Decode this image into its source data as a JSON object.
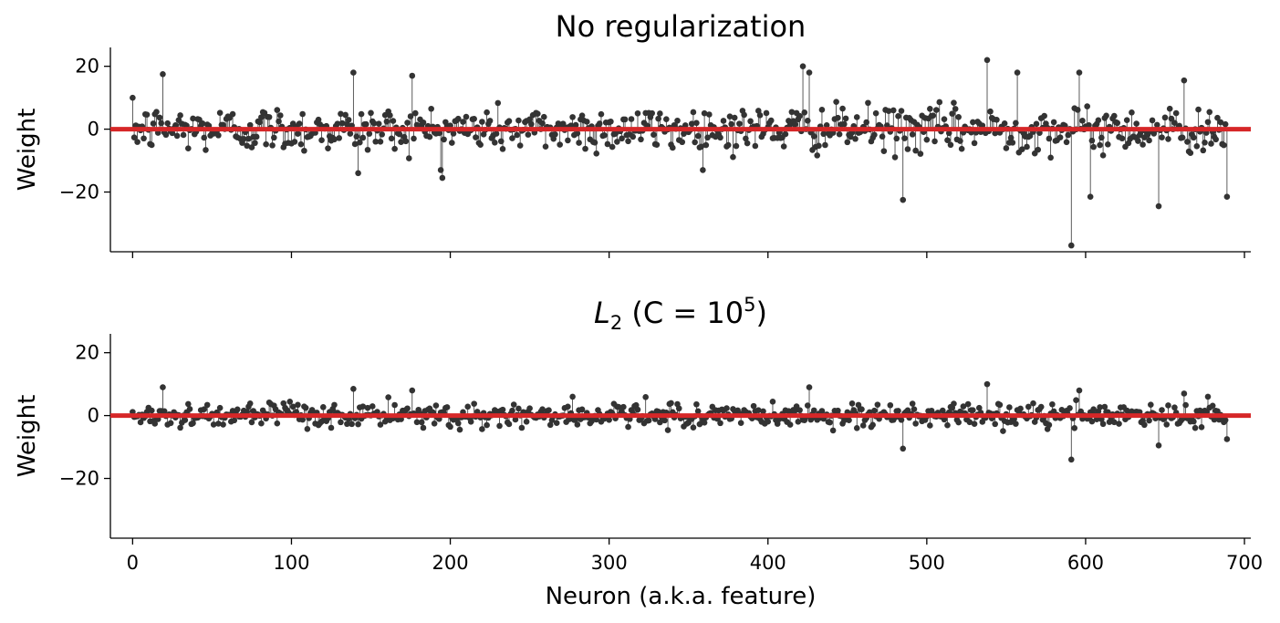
{
  "chart_data": [
    {
      "type": "scatter",
      "subtype": "stem",
      "title": "No regularization",
      "xlabel": "",
      "ylabel": "Weight",
      "xlim": [
        -14,
        704
      ],
      "ylim": [
        -39,
        26
      ],
      "xticks": [
        0,
        100,
        200,
        300,
        400,
        500,
        600,
        700
      ],
      "xtick_labels_visible": false,
      "yticks": [
        20,
        0,
        -20
      ],
      "ytick_labels": [
        "20",
        "0",
        "−20"
      ],
      "grid": false,
      "baseline": {
        "y": 0,
        "color": "#d62728"
      },
      "marker_color": "#333333",
      "notable_points": [
        {
          "x": 19,
          "y": 17.5
        },
        {
          "x": 139,
          "y": 18
        },
        {
          "x": 142,
          "y": -14
        },
        {
          "x": 176,
          "y": 17
        },
        {
          "x": 195,
          "y": -15.5
        },
        {
          "x": 422,
          "y": 20
        },
        {
          "x": 426,
          "y": 18
        },
        {
          "x": 485,
          "y": -22.5
        },
        {
          "x": 538,
          "y": 22
        },
        {
          "x": 557,
          "y": 18
        },
        {
          "x": 591,
          "y": -37
        },
        {
          "x": 596,
          "y": 18
        },
        {
          "x": 603,
          "y": -21.5
        },
        {
          "x": 646,
          "y": -24.5
        },
        {
          "x": 662,
          "y": 15.5
        },
        {
          "x": 689,
          "y": -21.5
        }
      ],
      "n_points": 690
    },
    {
      "type": "scatter",
      "subtype": "stem",
      "title": "L2 (C = 10^5)",
      "title_parts": {
        "L": "L",
        "sub": "2",
        "rest": " (C = 10",
        "sup": "5",
        "close": ")"
      },
      "xlabel": "Neuron (a.k.a. feature)",
      "ylabel": "Weight",
      "xlim": [
        -14,
        704
      ],
      "ylim": [
        -39,
        26
      ],
      "xticks": [
        0,
        100,
        200,
        300,
        400,
        500,
        600,
        700
      ],
      "xtick_labels": [
        "0",
        "100",
        "200",
        "300",
        "400",
        "500",
        "600",
        "700"
      ],
      "yticks": [
        20,
        0,
        -20
      ],
      "ytick_labels": [
        "20",
        "0",
        "−20"
      ],
      "grid": false,
      "baseline": {
        "y": 0,
        "color": "#d62728"
      },
      "marker_color": "#333333",
      "notable_points": [
        {
          "x": 19,
          "y": 9
        },
        {
          "x": 139,
          "y": 8.5
        },
        {
          "x": 176,
          "y": 8
        },
        {
          "x": 277,
          "y": 6
        },
        {
          "x": 426,
          "y": 9
        },
        {
          "x": 485,
          "y": -10.5
        },
        {
          "x": 538,
          "y": 10
        },
        {
          "x": 591,
          "y": -14
        },
        {
          "x": 596,
          "y": 8
        },
        {
          "x": 646,
          "y": -9.5
        },
        {
          "x": 662,
          "y": 7
        },
        {
          "x": 689,
          "y": -7.5
        }
      ],
      "n_points": 690
    }
  ]
}
